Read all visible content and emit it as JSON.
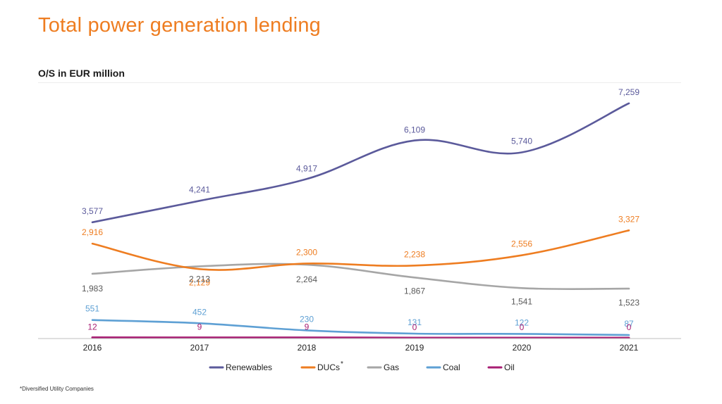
{
  "chart_data": {
    "type": "line",
    "title": "Total power generation lending",
    "subtitle": "O/S in EUR million",
    "xlabel": "",
    "ylabel": "",
    "x": [
      "2016",
      "2017",
      "2018",
      "2019",
      "2020",
      "2021"
    ],
    "ylim": [
      0,
      7500
    ],
    "grid": false,
    "legend_position": "bottom",
    "series": [
      {
        "name": "Renewables",
        "color": "#5b5a9b",
        "label_color": "#5b5a9b",
        "values": [
          3577,
          4241,
          4917,
          6109,
          5740,
          7259
        ],
        "labels": [
          "3,577",
          "4,241",
          "4,917",
          "6,109",
          "5,740",
          "7,259"
        ]
      },
      {
        "name": "DUCs",
        "superscript": "*",
        "color": "#ee7d21",
        "label_color": "#ee7d21",
        "values": [
          2916,
          2129,
          2300,
          2238,
          2556,
          3327
        ],
        "labels": [
          "2,916",
          "2,129",
          "2,300",
          "2,238",
          "2,556",
          "3,327"
        ]
      },
      {
        "name": "Gas",
        "color": "#a6a6a6",
        "label_color": "#595959",
        "values": [
          1983,
          2213,
          2264,
          1867,
          1541,
          1523
        ],
        "labels": [
          "1,983",
          "2,213",
          "2,264",
          "1,867",
          "1,541",
          "1,523"
        ]
      },
      {
        "name": "Coal",
        "color": "#5ea0d4",
        "label_color": "#5ea0d4",
        "values": [
          551,
          452,
          230,
          131,
          122,
          87
        ],
        "labels": [
          "551",
          "452",
          "230",
          "131",
          "122",
          "87"
        ]
      },
      {
        "name": "Oil",
        "color": "#a81e73",
        "label_color": "#a81e73",
        "values": [
          12,
          9,
          9,
          0,
          0,
          0
        ],
        "labels": [
          "12",
          "9",
          "9",
          "0",
          "0",
          "0"
        ]
      }
    ]
  },
  "footnote": "*Diversified Utility Companies"
}
